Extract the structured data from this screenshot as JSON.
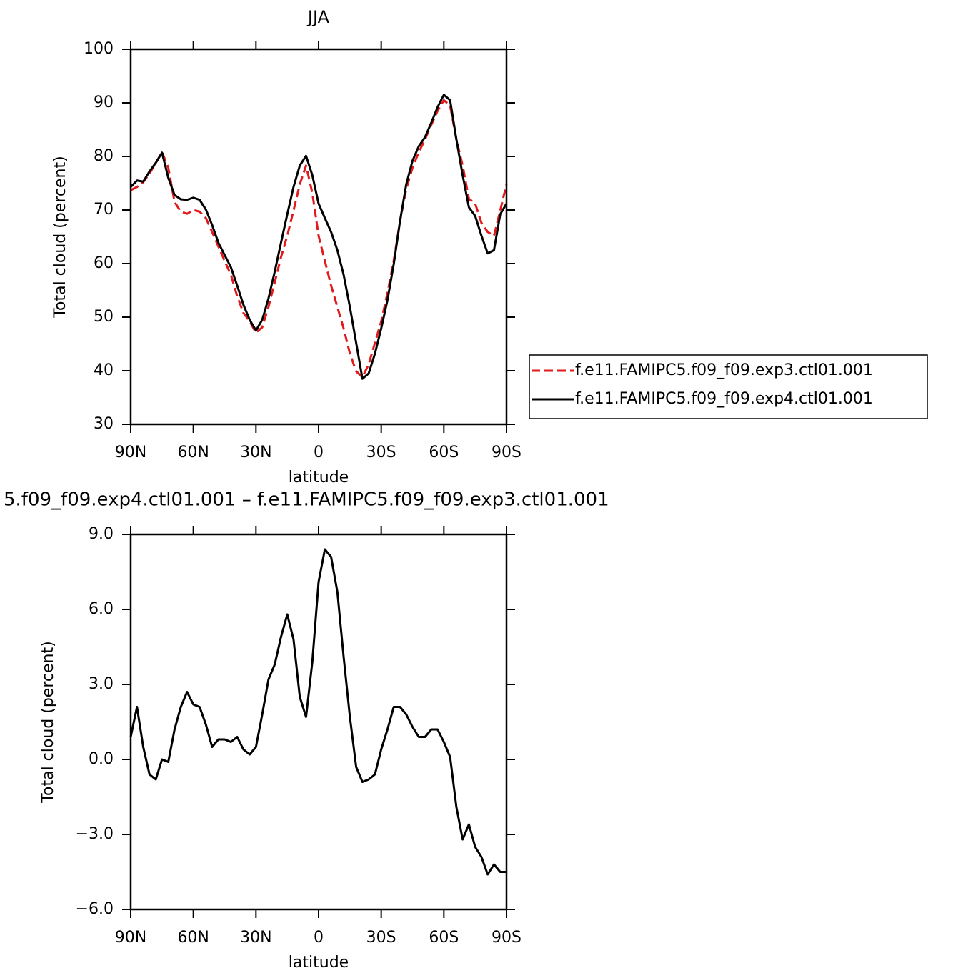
{
  "chart_data": [
    {
      "type": "line",
      "title": "JJA",
      "xlabel": "latitude",
      "ylabel": "Total cloud (percent)",
      "x": [
        90,
        87,
        84,
        81,
        78,
        75,
        72,
        69,
        66,
        63,
        60,
        57,
        54,
        51,
        48,
        45,
        42,
        39,
        36,
        33,
        30,
        27,
        24,
        21,
        18,
        15,
        12,
        9,
        6,
        3,
        0,
        -3,
        -6,
        -9,
        -12,
        -15,
        -18,
        -21,
        -24,
        -27,
        -30,
        -33,
        -36,
        -39,
        -42,
        -45,
        -48,
        -51,
        -54,
        -57,
        -60,
        -63,
        -66,
        -69,
        -72,
        -75,
        -78,
        -81,
        -84,
        -87,
        -90
      ],
      "xlim": [
        90,
        -90
      ],
      "xticks": [
        {
          "value": 90,
          "label": "90N"
        },
        {
          "value": 60,
          "label": "60N"
        },
        {
          "value": 30,
          "label": "30N"
        },
        0,
        {
          "value": -30,
          "label": "30S"
        },
        {
          "value": -60,
          "label": "60S"
        },
        {
          "value": -90,
          "label": "90S"
        }
      ],
      "ylim": [
        30,
        100
      ],
      "yticks": [
        30,
        40,
        50,
        60,
        70,
        80,
        90,
        100
      ],
      "legend": "right",
      "series": [
        {
          "name": "f.e11.FAMIPC5.f09_f09.exp3.ctl01.001",
          "color": "#e31a1c",
          "dash": "dashed",
          "values": [
            73.7,
            74.3,
            75.2,
            76.8,
            78.8,
            80.8,
            77.9,
            71.5,
            69.7,
            69.3,
            70,
            69.7,
            68.5,
            65.9,
            63.2,
            60.5,
            57.9,
            53.9,
            50.8,
            49.2,
            47.1,
            48.1,
            51.9,
            56.5,
            61.2,
            65.2,
            69.9,
            74.8,
            78.3,
            73.2,
            65.2,
            60.5,
            55.9,
            51.9,
            47.9,
            43.2,
            39.9,
            38.8,
            41.2,
            45.2,
            49.2,
            54.5,
            60.5,
            67.9,
            73.9,
            77.9,
            80.8,
            83.2,
            85.9,
            88.5,
            90.5,
            89.5,
            83.2,
            78.3,
            72.1,
            71.2,
            67.6,
            65.9,
            65.2,
            69.9,
            74.8
          ]
        },
        {
          "name": "f.e11.FAMIPC5.f09_f09.exp4.ctl01.001",
          "color": "#000000",
          "dash": "solid",
          "values": [
            74.3,
            75.5,
            75.3,
            77.2,
            78.8,
            80.7,
            76,
            72.8,
            72,
            71.9,
            72.3,
            71.9,
            70.1,
            67.2,
            63.9,
            61.6,
            59.3,
            55.9,
            52.3,
            49.5,
            47.5,
            49.5,
            53.5,
            58.5,
            63.9,
            69.2,
            74.3,
            78.3,
            80.1,
            76.5,
            71.2,
            68.5,
            65.9,
            62.5,
            57.9,
            51.9,
            45.2,
            38.5,
            39.5,
            43.2,
            47.9,
            53.2,
            59.9,
            67.9,
            74.8,
            79.2,
            81.9,
            83.6,
            86.3,
            89.2,
            91.5,
            90.5,
            83.2,
            76.5,
            70.5,
            68.9,
            65.2,
            61.9,
            62.5,
            69.2,
            71.2
          ]
        }
      ]
    },
    {
      "type": "line",
      "title": "5.f09_f09.exp4.ctl01.001 – f.e11.FAMIPC5.f09_f09.exp3.ctl01.001",
      "xlabel": "latitude",
      "ylabel": "Total cloud (percent)",
      "x": [
        90,
        87,
        84,
        81,
        78,
        75,
        72,
        69,
        66,
        63,
        60,
        57,
        54,
        51,
        48,
        45,
        42,
        39,
        36,
        33,
        30,
        27,
        24,
        21,
        18,
        15,
        12,
        9,
        6,
        3,
        0,
        -3,
        -6,
        -9,
        -12,
        -15,
        -18,
        -21,
        -24,
        -27,
        -30,
        -33,
        -36,
        -39,
        -42,
        -45,
        -48,
        -51,
        -54,
        -57,
        -60,
        -63,
        -66,
        -69,
        -72,
        -75,
        -78,
        -81,
        -84,
        -87,
        -90
      ],
      "xlim": [
        90,
        -90
      ],
      "xticks": [
        {
          "value": 90,
          "label": "90N"
        },
        {
          "value": 60,
          "label": "60N"
        },
        {
          "value": 30,
          "label": "30N"
        },
        0,
        {
          "value": -30,
          "label": "30S"
        },
        {
          "value": -60,
          "label": "60S"
        },
        {
          "value": -90,
          "label": "90S"
        }
      ],
      "ylim": [
        -6,
        9
      ],
      "yticks": [
        {
          "value": -6,
          "label": "−6.0"
        },
        {
          "value": -3,
          "label": "−3.0"
        },
        {
          "value": 0,
          "label": "0.0"
        },
        {
          "value": 3,
          "label": "3.0"
        },
        {
          "value": 6,
          "label": "6.0"
        },
        {
          "value": 9,
          "label": "9.0"
        }
      ],
      "series": [
        {
          "color": "#000000",
          "dash": "solid",
          "values": [
            0.9,
            2.1,
            0.5,
            -0.6,
            -0.8,
            0.0,
            -0.1,
            1.2,
            2.1,
            2.7,
            2.2,
            2.1,
            1.4,
            0.5,
            0.8,
            0.8,
            0.7,
            0.9,
            0.4,
            0.2,
            0.5,
            1.8,
            3.2,
            3.8,
            4.9,
            5.8,
            4.8,
            2.5,
            1.7,
            3.9,
            7.1,
            8.4,
            8.1,
            6.7,
            4.1,
            1.7,
            -0.3,
            -0.9,
            -0.8,
            -0.6,
            0.4,
            1.2,
            2.1,
            2.1,
            1.8,
            1.3,
            0.9,
            0.9,
            1.2,
            1.2,
            0.7,
            0.1,
            -1.9,
            -3.2,
            -2.6,
            -3.5,
            -3.9,
            -4.6,
            -4.2,
            -4.5,
            -4.5
          ]
        }
      ]
    }
  ]
}
